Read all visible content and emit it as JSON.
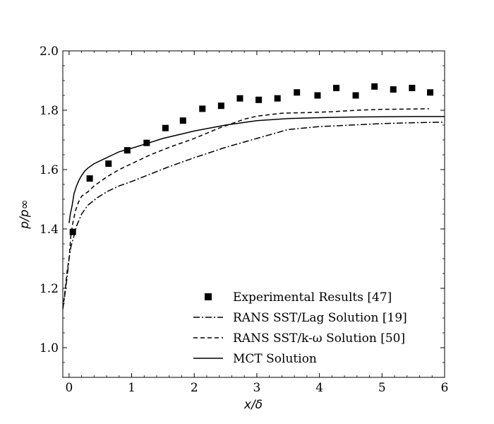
{
  "chart_data": {
    "type": "line",
    "title": "",
    "xlabel": "x/δ",
    "ylabel": "p/p∞",
    "xlim": [
      -0.1,
      6
    ],
    "ylim": [
      0.9,
      2.0
    ],
    "xticks": [
      0,
      1,
      2,
      3,
      4,
      5,
      6
    ],
    "yticks": [
      1.0,
      1.2,
      1.4,
      1.6,
      1.8,
      2.0
    ],
    "xtick_labels": [
      "0",
      "1",
      "2",
      "3",
      "4",
      "5",
      "6"
    ],
    "ytick_labels": [
      "1.0",
      "1.2",
      "1.4",
      "1.6",
      "1.8",
      "2.0"
    ],
    "grid": false,
    "legend_position": "lower-right",
    "series": [
      {
        "name": "Experimental Results [47]",
        "kind": "scatter",
        "marker": "square",
        "x": [
          0.06,
          0.33,
          0.63,
          0.93,
          1.24,
          1.54,
          1.82,
          2.13,
          2.43,
          2.73,
          3.03,
          3.33,
          3.64,
          3.97,
          4.27,
          4.58,
          4.88,
          5.18,
          5.48,
          5.77
        ],
        "y": [
          1.39,
          1.57,
          1.62,
          1.665,
          1.69,
          1.74,
          1.765,
          1.805,
          1.815,
          1.84,
          1.835,
          1.84,
          1.86,
          1.85,
          1.875,
          1.85,
          1.88,
          1.87,
          1.875,
          1.86
        ]
      },
      {
        "name": "RANS SST/Lag Solution [19]",
        "kind": "line",
        "dash": "dashdot",
        "x": [
          -0.1,
          -0.06,
          -0.03,
          0.0,
          0.03,
          0.07,
          0.12,
          0.2,
          0.3,
          0.45,
          0.6,
          0.8,
          1.0,
          1.3,
          1.6,
          2.0,
          2.5,
          3.0,
          3.5,
          4.0,
          4.5,
          5.0,
          5.5,
          6.0
        ],
        "y": [
          1.13,
          1.19,
          1.24,
          1.3,
          1.34,
          1.37,
          1.41,
          1.45,
          1.48,
          1.505,
          1.525,
          1.545,
          1.56,
          1.585,
          1.61,
          1.64,
          1.675,
          1.705,
          1.735,
          1.745,
          1.75,
          1.755,
          1.758,
          1.76
        ]
      },
      {
        "name": "RANS SST/k-ω Solution [50]",
        "kind": "line",
        "dash": "dashed",
        "x": [
          -0.1,
          -0.06,
          -0.03,
          0.0,
          0.03,
          0.06,
          0.1,
          0.15,
          0.2,
          0.3,
          0.4,
          0.6,
          0.8,
          1.0,
          1.3,
          1.6,
          2.0,
          2.4,
          2.8,
          3.0,
          3.4,
          3.8,
          4.2,
          4.6,
          5.0,
          5.4,
          5.75
        ],
        "y": [
          1.13,
          1.2,
          1.26,
          1.3,
          1.38,
          1.42,
          1.46,
          1.49,
          1.51,
          1.525,
          1.545,
          1.575,
          1.6,
          1.62,
          1.65,
          1.675,
          1.705,
          1.74,
          1.77,
          1.78,
          1.79,
          1.792,
          1.795,
          1.8,
          1.803,
          1.804,
          1.805
        ]
      },
      {
        "name": "MCT Solution",
        "kind": "line",
        "dash": "solid",
        "x": [
          0.0,
          0.02,
          0.05,
          0.08,
          0.12,
          0.16,
          0.2,
          0.25,
          0.3,
          0.4,
          0.5,
          0.6,
          0.7,
          0.8,
          1.0,
          1.2,
          1.5,
          1.8,
          2.0,
          2.5,
          3.0,
          3.5,
          4.0,
          4.5,
          5.0,
          5.5,
          6.0
        ],
        "y": [
          1.42,
          1.45,
          1.48,
          1.52,
          1.545,
          1.565,
          1.58,
          1.595,
          1.605,
          1.62,
          1.63,
          1.64,
          1.65,
          1.66,
          1.672,
          1.685,
          1.705,
          1.72,
          1.73,
          1.75,
          1.765,
          1.772,
          1.775,
          1.777,
          1.778,
          1.779,
          1.779
        ]
      }
    ]
  }
}
